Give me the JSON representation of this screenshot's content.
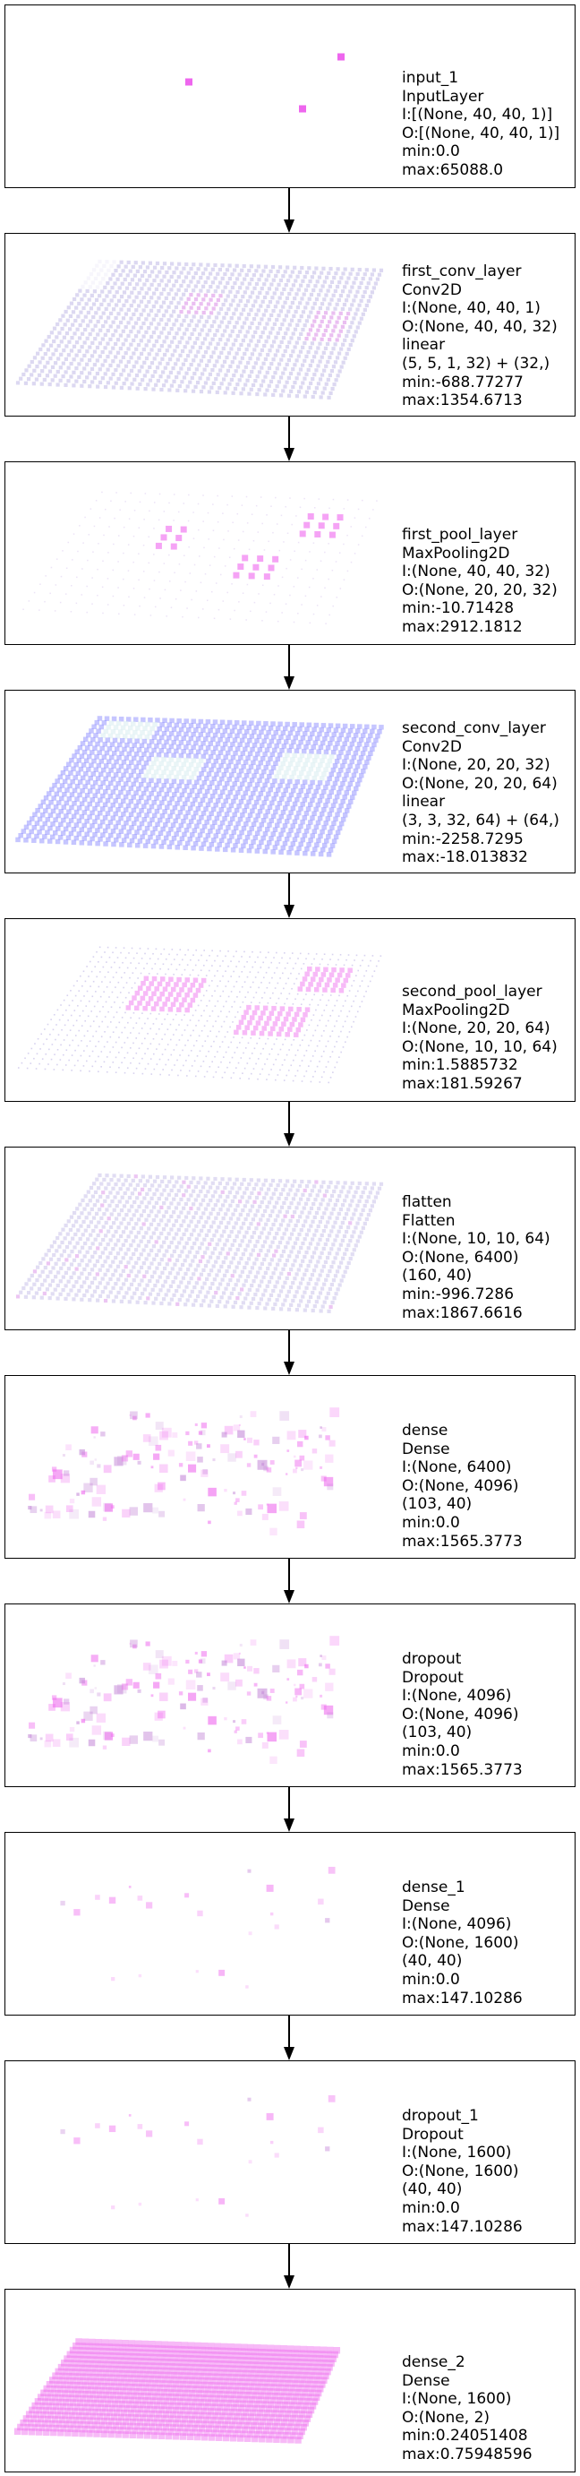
{
  "colors": {
    "pink": "#ee66ee",
    "lavender": "#9a8fd6",
    "blue": "#8080ff",
    "light_pink": "#f4b6f4"
  },
  "layers": [
    {
      "id": "input",
      "name": "input_1",
      "type": "InputLayer",
      "lines": [
        "I:[(None, 40, 40, 1)]",
        "O:[(None, 40, 40, 1)]",
        "min:0.0",
        "max:65088.0"
      ],
      "viz": "scatter_input"
    },
    {
      "id": "first_conv",
      "name": "first_conv_layer",
      "type": "Conv2D",
      "lines": [
        "I:(None, 40, 40, 1)",
        "O:(None, 40, 40, 32)",
        "linear",
        "(5, 5, 1, 32) + (32,)",
        "min:-688.77277",
        "max:1354.6713"
      ],
      "viz": "grid_lavender"
    },
    {
      "id": "first_pool",
      "name": "first_pool_layer",
      "type": "MaxPooling2D",
      "lines": [
        "I:(None, 40, 40, 32)",
        "O:(None, 20, 20, 32)",
        "min:-10.71428",
        "max:2912.1812"
      ],
      "viz": "grid_pool1"
    },
    {
      "id": "second_conv",
      "name": "second_conv_layer",
      "type": "Conv2D",
      "lines": [
        "I:(None, 20, 20, 32)",
        "O:(None, 20, 20, 64)",
        "linear",
        "(3, 3, 32, 64) + (64,)",
        "min:-2258.7295",
        "max:-18.013832"
      ],
      "viz": "grid_blue"
    },
    {
      "id": "second_pool",
      "name": "second_pool_layer",
      "type": "MaxPooling2D",
      "lines": [
        "I:(None, 20, 20, 64)",
        "O:(None, 10, 10, 64)",
        "min:1.5885732",
        "max:181.59267"
      ],
      "viz": "grid_pool2"
    },
    {
      "id": "flatten",
      "name": "flatten",
      "type": "Flatten",
      "lines": [
        "I:(None, 10, 10, 64)",
        "O:(None, 6400)",
        "(160, 40)",
        "min:-996.7286",
        "max:1867.6616"
      ],
      "viz": "grid_flatten"
    },
    {
      "id": "dense",
      "name": "dense",
      "type": "Dense",
      "lines": [
        "I:(None, 6400)",
        "O:(None, 4096)",
        "(103, 40)",
        "min:0.0",
        "max:1565.3773"
      ],
      "viz": "scatter_dense"
    },
    {
      "id": "dropout",
      "name": "dropout",
      "type": "Dropout",
      "lines": [
        "I:(None, 4096)",
        "O:(None, 4096)",
        "(103, 40)",
        "min:0.0",
        "max:1565.3773"
      ],
      "viz": "scatter_dense"
    },
    {
      "id": "dense_1",
      "name": "dense_1",
      "type": "Dense",
      "lines": [
        "I:(None, 4096)",
        "O:(None, 1600)",
        "(40, 40)",
        "min:0.0",
        "max:147.10286"
      ],
      "viz": "scatter_sparse"
    },
    {
      "id": "dropout_1",
      "name": "dropout_1",
      "type": "Dropout",
      "lines": [
        "I:(None, 1600)",
        "O:(None, 1600)",
        "(40, 40)",
        "min:0.0",
        "max:147.10286"
      ],
      "viz": "scatter_sparse"
    },
    {
      "id": "dense_2",
      "name": "dense_2",
      "type": "Dense",
      "lines": [
        "I:(None, 1600)",
        "O:(None, 2)",
        "min:0.24051408",
        "max:0.75948596"
      ],
      "viz": "grid_pink"
    }
  ]
}
